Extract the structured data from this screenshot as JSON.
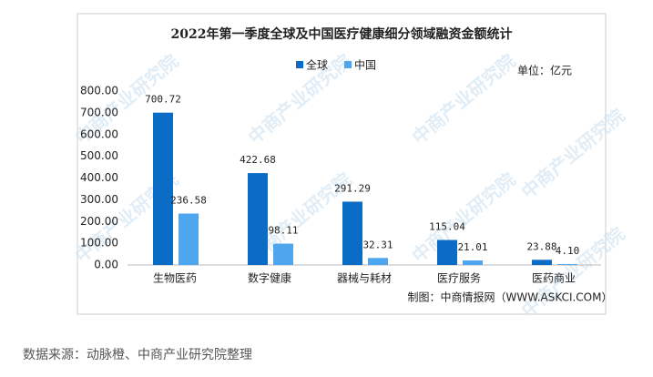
{
  "chart_data": {
    "type": "bar",
    "title": "2022年第一季度全球及中国医疗健康细分领域融资金额统计",
    "unit": "单位：亿元",
    "categories": [
      "生物医药",
      "数字健康",
      "器械与耗材",
      "医疗服务",
      "医药商业"
    ],
    "series": [
      {
        "name": "全球",
        "color": "#0b6cc6",
        "values": [
          700.72,
          422.68,
          291.29,
          115.04,
          23.88
        ],
        "value_labels": [
          "700.72",
          "422.68",
          "291.29",
          "115.04",
          "23.88"
        ]
      },
      {
        "name": "中国",
        "color": "#4da6ee",
        "values": [
          236.58,
          98.11,
          32.31,
          21.01,
          4.1
        ],
        "value_labels": [
          "236.58",
          "98.11",
          "32.31",
          "21.01",
          "4.10"
        ]
      }
    ],
    "ylim": [
      0,
      800
    ],
    "yticks": [
      {
        "value": 0,
        "label": "0.00"
      },
      {
        "value": 100,
        "label": "100.00"
      },
      {
        "value": 200,
        "label": "200.00"
      },
      {
        "value": 300,
        "label": "300.00"
      },
      {
        "value": 400,
        "label": "400.00"
      },
      {
        "value": 500,
        "label": "500.00"
      },
      {
        "value": 600,
        "label": "600.00"
      },
      {
        "value": 700,
        "label": "700.00"
      },
      {
        "value": 800,
        "label": "800.00"
      }
    ],
    "grid": false,
    "credit": "制图：中商情报网（WWW.ASKCI.COM）",
    "watermark": "中商产业研究院"
  },
  "footer": "数据来源：动脉橙、中商产业研究院整理"
}
